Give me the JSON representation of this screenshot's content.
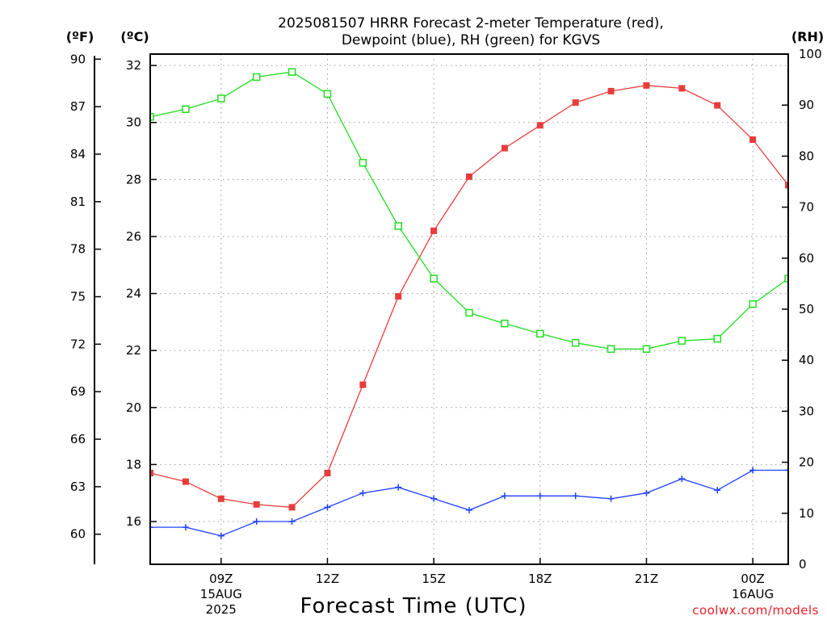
{
  "chart_data": {
    "type": "line",
    "title": "2025081507 HRRR Forecast 2-meter Temperature (red),",
    "subtitle": "Dewpoint (blue), RH (green) for KGVS",
    "xlabel": "Forecast Time (UTC)",
    "credit": "coolwx.com/models",
    "units": {
      "fahrenheit": "(ºF)",
      "celsius": "(ºC)",
      "rh": "(RH)"
    },
    "x_hours": [
      7,
      8,
      9,
      10,
      11,
      12,
      13,
      14,
      15,
      16,
      17,
      18,
      19,
      20,
      21,
      22,
      23,
      24,
      25,
      26
    ],
    "x_ticks": [
      {
        "hour": 9,
        "label": "09Z",
        "date": "15AUG",
        "year": "2025"
      },
      {
        "hour": 12,
        "label": "12Z",
        "date": "",
        "year": ""
      },
      {
        "hour": 15,
        "label": "15Z",
        "date": "",
        "year": ""
      },
      {
        "hour": 18,
        "label": "18Z",
        "date": "",
        "year": ""
      },
      {
        "hour": 21,
        "label": "21Z",
        "date": "",
        "year": ""
      },
      {
        "hour": 24,
        "label": "00Z",
        "date": "16AUG",
        "year": ""
      }
    ],
    "xlim": [
      7,
      25
    ],
    "celsius_axis": {
      "ylim": [
        14.5,
        32.4
      ],
      "ticks": [
        16,
        18,
        20,
        22,
        24,
        26,
        28,
        30,
        32
      ]
    },
    "fahrenheit_axis": {
      "ticks": [
        60,
        63,
        66,
        69,
        72,
        75,
        78,
        81,
        84,
        87,
        90
      ]
    },
    "rh_axis": {
      "ylim": [
        0,
        100
      ],
      "ticks": [
        0,
        10,
        20,
        30,
        40,
        50,
        60,
        70,
        80,
        90,
        100
      ]
    },
    "series": [
      {
        "name": "Temperature",
        "axis": "celsius",
        "color": "#e83c3c",
        "marker": "filled-square",
        "values": [
          17.7,
          17.4,
          16.8,
          16.6,
          16.5,
          17.7,
          20.8,
          23.9,
          26.2,
          28.1,
          29.1,
          29.9,
          30.7,
          31.1,
          31.3,
          31.2,
          30.6,
          29.4,
          27.8,
          25.8
        ]
      },
      {
        "name": "Dewpoint",
        "axis": "celsius",
        "color": "#2040ff",
        "marker": "plus",
        "values": [
          15.8,
          15.8,
          15.5,
          16.0,
          16.0,
          16.5,
          17.0,
          17.2,
          16.8,
          16.4,
          16.9,
          16.9,
          16.9,
          16.8,
          17.0,
          17.5,
          17.1,
          17.8,
          17.8,
          18.4
        ]
      },
      {
        "name": "RH",
        "axis": "rh",
        "color": "#22dd22",
        "marker": "open-square",
        "values": [
          87.7,
          89.2,
          91.3,
          95.5,
          96.5,
          92.2,
          78.7,
          66.3,
          56.0,
          49.3,
          47.2,
          45.2,
          43.4,
          42.2,
          42.2,
          43.8,
          44.2,
          51.0,
          56.0,
          60.5
        ]
      }
    ],
    "grid": true
  }
}
